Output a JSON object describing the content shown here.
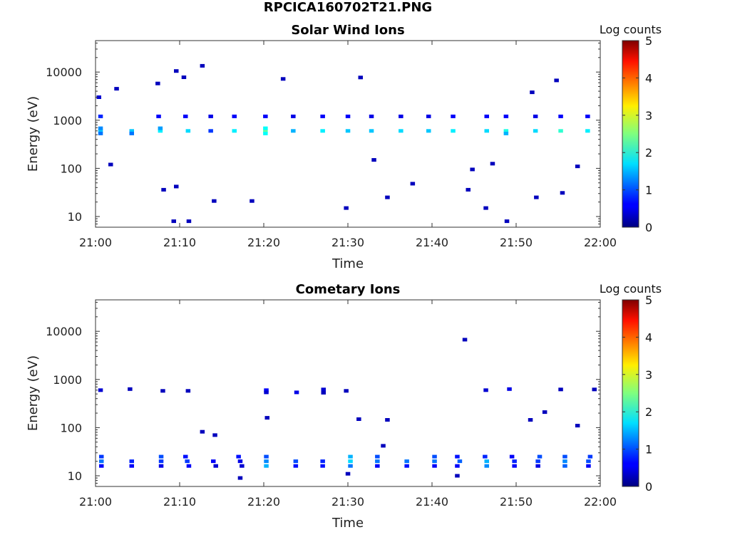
{
  "figure": {
    "title": "RPCICA160702T21.PNG"
  },
  "chart_data": [
    {
      "type": "heatmap",
      "title": "Solar Wind Ions",
      "xlabel": "Time",
      "ylabel": "Energy (eV)",
      "x_ticks": [
        "21:00",
        "21:10",
        "21:20",
        "21:30",
        "21:40",
        "21:50",
        "22:00"
      ],
      "x_range_minutes": [
        0,
        60
      ],
      "y_scale": "log",
      "y_ticks": [
        10,
        100,
        1000,
        10000
      ],
      "y_tick_labels": [
        "10",
        "100",
        "1000",
        "10000"
      ],
      "y_range": [
        6,
        45000
      ],
      "colorbar": {
        "label": "Log counts",
        "range": [
          0,
          5
        ],
        "ticks": [
          "0",
          "1",
          "2",
          "3",
          "4",
          "5"
        ],
        "colormap": "jet"
      },
      "cells": [
        {
          "t": 0.6,
          "e": 600,
          "v": 1.6
        },
        {
          "t": 0.6,
          "e": 530,
          "v": 1.2
        },
        {
          "t": 0.6,
          "e": 680,
          "v": 1.3
        },
        {
          "t": 0.6,
          "e": 1200,
          "v": 0.8
        },
        {
          "t": 0.4,
          "e": 3000,
          "v": 0.4
        },
        {
          "t": 4.3,
          "e": 600,
          "v": 1.6
        },
        {
          "t": 4.3,
          "e": 530,
          "v": 1.2
        },
        {
          "t": 7.7,
          "e": 600,
          "v": 1.8
        },
        {
          "t": 7.7,
          "e": 680,
          "v": 1.4
        },
        {
          "t": 7.5,
          "e": 1200,
          "v": 0.6
        },
        {
          "t": 11.0,
          "e": 600,
          "v": 1.7
        },
        {
          "t": 10.7,
          "e": 1200,
          "v": 0.6
        },
        {
          "t": 13.7,
          "e": 600,
          "v": 0.9
        },
        {
          "t": 13.7,
          "e": 1200,
          "v": 0.5
        },
        {
          "t": 16.5,
          "e": 600,
          "v": 1.8
        },
        {
          "t": 16.5,
          "e": 1200,
          "v": 0.6
        },
        {
          "t": 20.2,
          "e": 600,
          "v": 2.4
        },
        {
          "t": 20.2,
          "e": 530,
          "v": 1.9
        },
        {
          "t": 20.2,
          "e": 680,
          "v": 1.9
        },
        {
          "t": 20.2,
          "e": 1200,
          "v": 0.6
        },
        {
          "t": 23.5,
          "e": 600,
          "v": 1.5
        },
        {
          "t": 23.5,
          "e": 1200,
          "v": 0.5
        },
        {
          "t": 27.0,
          "e": 600,
          "v": 1.8
        },
        {
          "t": 27.0,
          "e": 1200,
          "v": 0.6
        },
        {
          "t": 30.0,
          "e": 600,
          "v": 1.6
        },
        {
          "t": 30.0,
          "e": 1200,
          "v": 0.6
        },
        {
          "t": 32.8,
          "e": 600,
          "v": 1.6
        },
        {
          "t": 32.8,
          "e": 1200,
          "v": 0.5
        },
        {
          "t": 36.3,
          "e": 600,
          "v": 1.7
        },
        {
          "t": 36.3,
          "e": 1200,
          "v": 0.5
        },
        {
          "t": 39.6,
          "e": 600,
          "v": 1.6
        },
        {
          "t": 39.6,
          "e": 1200,
          "v": 0.5
        },
        {
          "t": 42.5,
          "e": 600,
          "v": 1.8
        },
        {
          "t": 42.5,
          "e": 1200,
          "v": 0.6
        },
        {
          "t": 46.5,
          "e": 600,
          "v": 1.7
        },
        {
          "t": 46.5,
          "e": 1200,
          "v": 0.6
        },
        {
          "t": 48.8,
          "e": 600,
          "v": 2.0
        },
        {
          "t": 48.8,
          "e": 530,
          "v": 1.5
        },
        {
          "t": 48.8,
          "e": 1200,
          "v": 0.6
        },
        {
          "t": 52.3,
          "e": 600,
          "v": 1.7
        },
        {
          "t": 52.3,
          "e": 1200,
          "v": 0.5
        },
        {
          "t": 55.3,
          "e": 600,
          "v": 2.1
        },
        {
          "t": 55.3,
          "e": 1200,
          "v": 0.6
        },
        {
          "t": 58.5,
          "e": 600,
          "v": 1.8
        },
        {
          "t": 58.5,
          "e": 1200,
          "v": 0.6
        },
        {
          "t": 9.3,
          "e": 8,
          "v": 0.3
        },
        {
          "t": 11.1,
          "e": 8,
          "v": 0.3
        },
        {
          "t": 29.8,
          "e": 15,
          "v": 0.3
        },
        {
          "t": 46.4,
          "e": 15,
          "v": 0.3
        },
        {
          "t": 48.9,
          "e": 8,
          "v": 0.3
        },
        {
          "t": 8.1,
          "e": 36,
          "v": 0.3
        },
        {
          "t": 9.6,
          "e": 42,
          "v": 0.3
        },
        {
          "t": 14.1,
          "e": 21,
          "v": 0.3
        },
        {
          "t": 18.6,
          "e": 21,
          "v": 0.3
        },
        {
          "t": 34.7,
          "e": 25,
          "v": 0.3
        },
        {
          "t": 52.4,
          "e": 25,
          "v": 0.3
        },
        {
          "t": 55.5,
          "e": 31,
          "v": 0.3
        },
        {
          "t": 44.3,
          "e": 36,
          "v": 0.3
        },
        {
          "t": 9.6,
          "e": 10500,
          "v": 0.3
        },
        {
          "t": 12.7,
          "e": 13500,
          "v": 0.3
        },
        {
          "t": 31.5,
          "e": 7700,
          "v": 0.3
        },
        {
          "t": 7.4,
          "e": 5800,
          "v": 0.3
        },
        {
          "t": 54.8,
          "e": 6700,
          "v": 0.3
        },
        {
          "t": 22.3,
          "e": 7200,
          "v": 0.3
        },
        {
          "t": 2.5,
          "e": 4500,
          "v": 0.3
        },
        {
          "t": 10.5,
          "e": 7800,
          "v": 0.3
        },
        {
          "t": 51.9,
          "e": 3800,
          "v": 0.3
        },
        {
          "t": 1.8,
          "e": 120,
          "v": 0.3
        },
        {
          "t": 44.8,
          "e": 95,
          "v": 0.3
        },
        {
          "t": 47.2,
          "e": 125,
          "v": 0.3
        },
        {
          "t": 57.3,
          "e": 110,
          "v": 0.3
        },
        {
          "t": 33.1,
          "e": 150,
          "v": 0.3
        },
        {
          "t": 37.7,
          "e": 48,
          "v": 0.3
        }
      ]
    },
    {
      "type": "heatmap",
      "title": "Cometary Ions",
      "xlabel": "Time",
      "ylabel": "Energy (eV)",
      "x_ticks": [
        "21:00",
        "21:10",
        "21:20",
        "21:30",
        "21:40",
        "21:50",
        "22:00"
      ],
      "x_range_minutes": [
        0,
        60
      ],
      "y_scale": "log",
      "y_ticks": [
        10,
        100,
        1000,
        10000
      ],
      "y_tick_labels": [
        "10",
        "100",
        "1000",
        "10000"
      ],
      "y_range": [
        6,
        45000
      ],
      "colorbar": {
        "label": "Log counts",
        "range": [
          0,
          5
        ],
        "ticks": [
          "0",
          "1",
          "2",
          "3",
          "4",
          "5"
        ],
        "colormap": "jet"
      },
      "cells": [
        {
          "t": 0.7,
          "e": 25,
          "v": 0.9
        },
        {
          "t": 0.7,
          "e": 20,
          "v": 1.2
        },
        {
          "t": 0.7,
          "e": 16,
          "v": 0.6
        },
        {
          "t": 4.3,
          "e": 20,
          "v": 0.8
        },
        {
          "t": 4.3,
          "e": 16,
          "v": 0.6
        },
        {
          "t": 7.8,
          "e": 25,
          "v": 1.0
        },
        {
          "t": 7.8,
          "e": 20,
          "v": 0.9
        },
        {
          "t": 7.8,
          "e": 16,
          "v": 0.5
        },
        {
          "t": 10.7,
          "e": 25,
          "v": 0.7
        },
        {
          "t": 10.9,
          "e": 20,
          "v": 0.9
        },
        {
          "t": 11.1,
          "e": 16,
          "v": 0.6
        },
        {
          "t": 14.0,
          "e": 20,
          "v": 0.6
        },
        {
          "t": 14.3,
          "e": 16,
          "v": 0.4
        },
        {
          "t": 17.0,
          "e": 25,
          "v": 0.7
        },
        {
          "t": 17.2,
          "e": 20,
          "v": 0.5
        },
        {
          "t": 17.4,
          "e": 16,
          "v": 0.4
        },
        {
          "t": 17.2,
          "e": 9,
          "v": 0.3
        },
        {
          "t": 20.3,
          "e": 25,
          "v": 1.0
        },
        {
          "t": 20.3,
          "e": 20,
          "v": 1.3
        },
        {
          "t": 20.3,
          "e": 16,
          "v": 1.5
        },
        {
          "t": 23.8,
          "e": 20,
          "v": 1.0
        },
        {
          "t": 23.8,
          "e": 16,
          "v": 0.7
        },
        {
          "t": 27.0,
          "e": 20,
          "v": 0.8
        },
        {
          "t": 27.0,
          "e": 16,
          "v": 0.7
        },
        {
          "t": 30.3,
          "e": 25,
          "v": 1.5
        },
        {
          "t": 30.3,
          "e": 20,
          "v": 1.7
        },
        {
          "t": 30.3,
          "e": 16,
          "v": 1.2
        },
        {
          "t": 30.0,
          "e": 11,
          "v": 0.3
        },
        {
          "t": 33.5,
          "e": 25,
          "v": 1.0
        },
        {
          "t": 33.5,
          "e": 20,
          "v": 1.2
        },
        {
          "t": 33.5,
          "e": 16,
          "v": 0.6
        },
        {
          "t": 37.0,
          "e": 20,
          "v": 1.2
        },
        {
          "t": 37.0,
          "e": 16,
          "v": 0.7
        },
        {
          "t": 40.3,
          "e": 25,
          "v": 1.0
        },
        {
          "t": 40.3,
          "e": 20,
          "v": 1.2
        },
        {
          "t": 40.3,
          "e": 16,
          "v": 0.6
        },
        {
          "t": 43.0,
          "e": 25,
          "v": 0.7
        },
        {
          "t": 43.3,
          "e": 20,
          "v": 1.1
        },
        {
          "t": 43.0,
          "e": 16,
          "v": 0.6
        },
        {
          "t": 43.0,
          "e": 10,
          "v": 0.3
        },
        {
          "t": 46.3,
          "e": 25,
          "v": 0.8
        },
        {
          "t": 46.5,
          "e": 20,
          "v": 1.5
        },
        {
          "t": 46.5,
          "e": 16,
          "v": 1.3
        },
        {
          "t": 49.5,
          "e": 25,
          "v": 0.6
        },
        {
          "t": 49.8,
          "e": 20,
          "v": 0.8
        },
        {
          "t": 49.8,
          "e": 16,
          "v": 0.6
        },
        {
          "t": 52.8,
          "e": 25,
          "v": 1.0
        },
        {
          "t": 52.6,
          "e": 20,
          "v": 0.9
        },
        {
          "t": 52.6,
          "e": 16,
          "v": 0.5
        },
        {
          "t": 55.8,
          "e": 25,
          "v": 1.0
        },
        {
          "t": 55.8,
          "e": 20,
          "v": 1.3
        },
        {
          "t": 55.8,
          "e": 16,
          "v": 1.1
        },
        {
          "t": 58.8,
          "e": 25,
          "v": 0.9
        },
        {
          "t": 58.6,
          "e": 20,
          "v": 1.0
        },
        {
          "t": 58.6,
          "e": 16,
          "v": 0.6
        },
        {
          "t": 0.6,
          "e": 600,
          "v": 0.4
        },
        {
          "t": 4.1,
          "e": 630,
          "v": 0.3
        },
        {
          "t": 8.0,
          "e": 580,
          "v": 0.3
        },
        {
          "t": 11.0,
          "e": 580,
          "v": 0.3
        },
        {
          "t": 20.3,
          "e": 600,
          "v": 0.6
        },
        {
          "t": 20.3,
          "e": 540,
          "v": 0.4
        },
        {
          "t": 23.9,
          "e": 540,
          "v": 0.5
        },
        {
          "t": 27.1,
          "e": 620,
          "v": 0.4
        },
        {
          "t": 27.1,
          "e": 530,
          "v": 0.3
        },
        {
          "t": 29.8,
          "e": 580,
          "v": 0.3
        },
        {
          "t": 46.4,
          "e": 600,
          "v": 0.4
        },
        {
          "t": 49.2,
          "e": 630,
          "v": 0.5
        },
        {
          "t": 55.3,
          "e": 620,
          "v": 0.3
        },
        {
          "t": 59.3,
          "e": 620,
          "v": 0.3
        },
        {
          "t": 43.9,
          "e": 6700,
          "v": 0.3
        },
        {
          "t": 12.7,
          "e": 82,
          "v": 0.3
        },
        {
          "t": 14.2,
          "e": 70,
          "v": 0.3
        },
        {
          "t": 20.4,
          "e": 160,
          "v": 0.3
        },
        {
          "t": 31.3,
          "e": 150,
          "v": 0.3
        },
        {
          "t": 34.7,
          "e": 145,
          "v": 0.3
        },
        {
          "t": 34.2,
          "e": 42,
          "v": 0.3
        },
        {
          "t": 51.7,
          "e": 145,
          "v": 0.3
        },
        {
          "t": 53.4,
          "e": 210,
          "v": 0.3
        },
        {
          "t": 57.3,
          "e": 110,
          "v": 0.3
        }
      ]
    }
  ]
}
